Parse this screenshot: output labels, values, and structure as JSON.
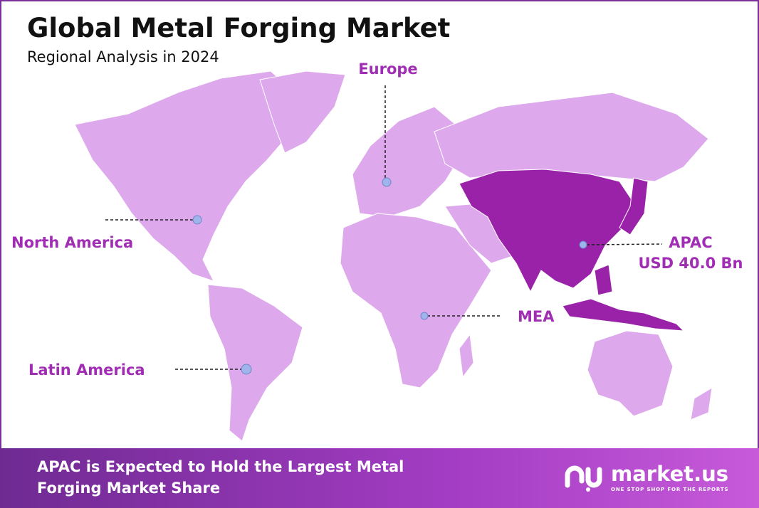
{
  "header": {
    "title": "Global Metal Forging Market",
    "subtitle": "Regional Analysis in 2024"
  },
  "regions": [
    {
      "label": "Europe"
    },
    {
      "label": "North America"
    },
    {
      "label": "APAC",
      "value": "USD 40.0 Bn"
    },
    {
      "label": "MEA"
    },
    {
      "label": "Latin America"
    }
  ],
  "footer": {
    "text_line1": "APAC is Expected to Hold the Largest Metal",
    "text_line2": "Forging Market Share",
    "logo": "market.us",
    "tagline": "ONE STOP SHOP FOR THE REPORTS"
  }
}
